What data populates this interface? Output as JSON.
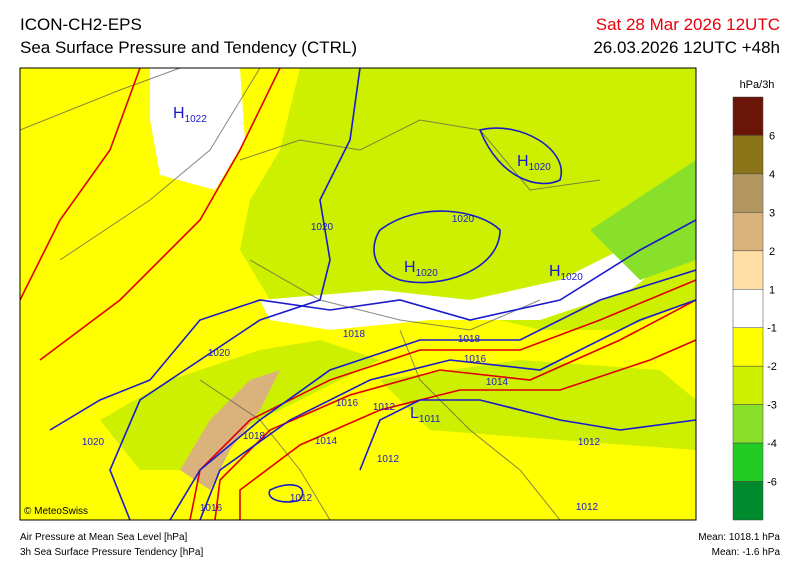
{
  "header": {
    "model": "ICON-CH2-EPS",
    "product": "Sea Surface Pressure and Tendency (CTRL)",
    "valid": "Sat 28 Mar 2026 12UTC",
    "run": "26.03.2026 12UTC +48h"
  },
  "map": {
    "centers": [
      {
        "symbol": "H",
        "value": 1022
      },
      {
        "symbol": "H",
        "value": 1020
      },
      {
        "symbol": "H",
        "value": 1020
      },
      {
        "symbol": "H",
        "value": 1020
      },
      {
        "symbol": "L",
        "value": 1011
      }
    ],
    "isobar_labels": [
      1020,
      1020,
      1020,
      1020,
      1018,
      1018,
      1016,
      1014,
      1016,
      1012,
      1018,
      1014,
      1012,
      1012,
      1012,
      1016,
      1012
    ],
    "credit": "© MeteoSwiss"
  },
  "colorbar": {
    "unit": "hPa/3h",
    "labels": [
      6,
      4,
      3,
      2,
      1,
      -1,
      -2,
      -3,
      -4,
      -6
    ],
    "colors": [
      "#6b1508",
      "#8c7418",
      "#b39760",
      "#d9b27c",
      "#ffdfa6",
      "#ffffff",
      "#ffff00",
      "#ccf000",
      "#88e02a",
      "#22cc22",
      "#008a2e"
    ]
  },
  "footer": {
    "legend": [
      "Air Pressure at Mean Sea Level [hPa]",
      "3h Sea Surface Pressure Tendency [hPa]"
    ],
    "mean_pressure": "Mean: 1018.1 hPa",
    "mean_tendency": "Mean:  -1.6 hPa"
  }
}
